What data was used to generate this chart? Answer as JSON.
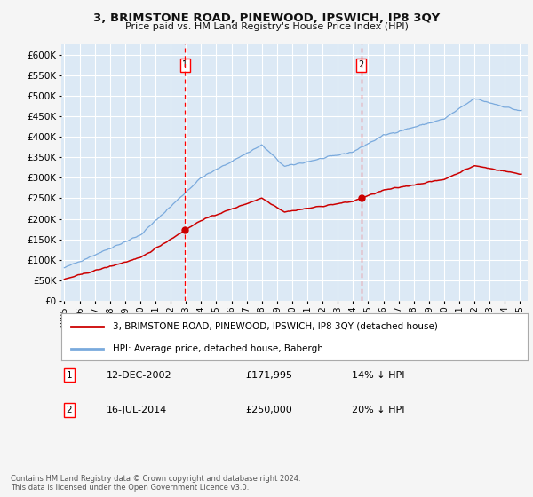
{
  "title": "3, BRIMSTONE ROAD, PINEWOOD, IPSWICH, IP8 3QY",
  "subtitle": "Price paid vs. HM Land Registry's House Price Index (HPI)",
  "ylim": [
    0,
    625000
  ],
  "yticks": [
    0,
    50000,
    100000,
    150000,
    200000,
    250000,
    300000,
    350000,
    400000,
    450000,
    500000,
    550000,
    600000
  ],
  "plot_bg": "#dce9f5",
  "grid_color": "#ffffff",
  "fig_bg": "#f5f5f5",
  "hpi_color": "#7aaadd",
  "price_color": "#cc0000",
  "sale1_date_x": 2002.95,
  "sale1_price": 171995,
  "sale1_label": "1",
  "sale2_date_x": 2014.54,
  "sale2_price": 250000,
  "sale2_label": "2",
  "legend_line1": "3, BRIMSTONE ROAD, PINEWOOD, IPSWICH, IP8 3QY (detached house)",
  "legend_line2": "HPI: Average price, detached house, Babergh",
  "note1_num": "1",
  "note1_date": "12-DEC-2002",
  "note1_price": "£171,995",
  "note1_pct": "14% ↓ HPI",
  "note2_num": "2",
  "note2_date": "16-JUL-2014",
  "note2_price": "£250,000",
  "note2_pct": "20% ↓ HPI",
  "footer": "Contains HM Land Registry data © Crown copyright and database right 2024.\nThis data is licensed under the Open Government Licence v3.0.",
  "xmin": 1994.8,
  "xmax": 2025.5
}
